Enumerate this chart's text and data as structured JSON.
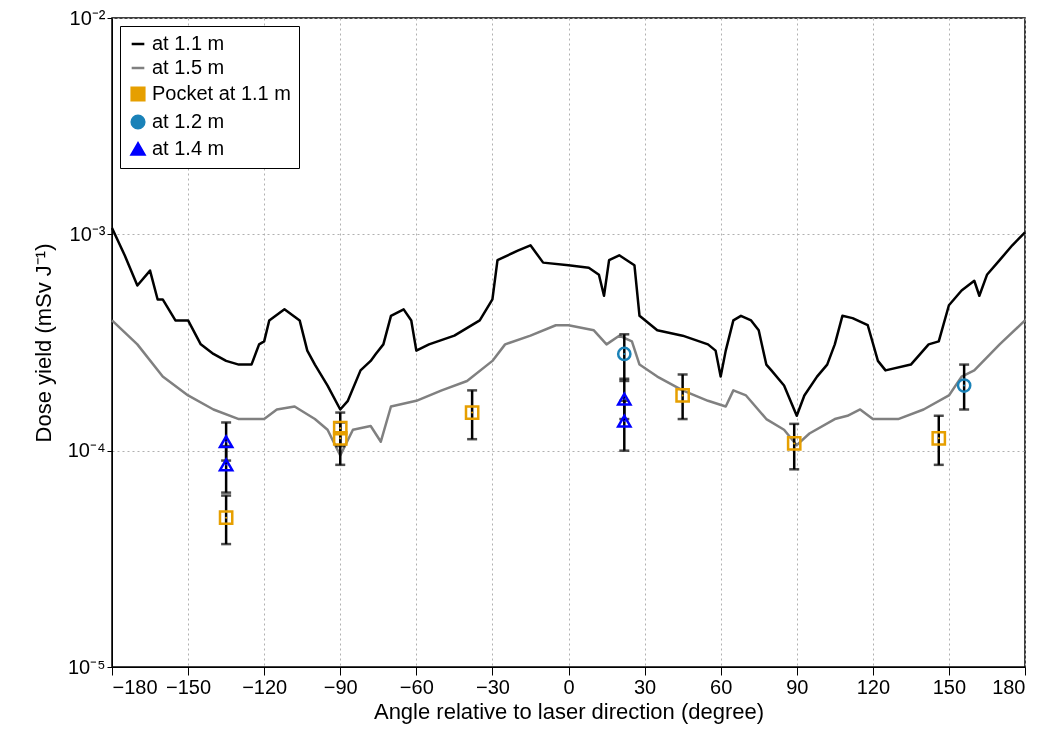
{
  "chart_data": {
    "type": "line",
    "xlabel": "Angle relative to laser direction (degree)",
    "ylabel": "Dose yield (mSv J⁻¹)",
    "xlim": [
      -180,
      180
    ],
    "xticks": [
      -180,
      -150,
      -120,
      -90,
      -60,
      -30,
      0,
      30,
      60,
      90,
      120,
      150,
      180
    ],
    "ylim": [
      1e-05,
      0.01
    ],
    "yticks": [
      {
        "value": 1e-05,
        "label": "10⁻⁵"
      },
      {
        "value": 0.0001,
        "label": "10⁻⁴"
      },
      {
        "value": 0.001,
        "label": "10⁻³"
      },
      {
        "value": 0.01,
        "label": "10⁻²"
      }
    ],
    "log": "y",
    "grid": true,
    "legend": "top left",
    "series": [
      {
        "name": "at 1.1 m",
        "color": "#000000",
        "marker": "none",
        "x": [
          -180,
          -175,
          -170,
          -165,
          -162,
          -160,
          -155,
          -150,
          -145,
          -140,
          -135,
          -130,
          -125,
          -122,
          -120,
          -118,
          -112,
          -106,
          -103,
          -100,
          -95,
          -90,
          -87,
          -82,
          -78,
          -76,
          -73,
          -70,
          -65,
          -62,
          -60,
          -55,
          -45,
          -35,
          -30,
          -28,
          -20,
          -15,
          -10,
          0,
          8,
          12,
          14,
          16,
          20,
          26,
          28,
          35,
          45,
          55,
          58,
          60,
          62,
          65,
          68,
          72,
          75,
          78,
          80,
          85,
          90,
          93,
          98,
          102,
          105,
          108,
          112,
          118,
          122,
          125,
          135,
          142,
          146,
          150,
          155,
          160,
          162,
          165,
          170,
          175,
          180
        ],
        "values": [
          0.00107,
          0.0008,
          0.00058,
          0.00068,
          0.0005,
          0.0005,
          0.0004,
          0.0004,
          0.00031,
          0.00028,
          0.00026,
          0.00025,
          0.00025,
          0.00031,
          0.00032,
          0.0004,
          0.00045,
          0.0004,
          0.00029,
          0.00025,
          0.0002,
          0.000155,
          0.00017,
          0.000235,
          0.00026,
          0.00028,
          0.00031,
          0.00042,
          0.00045,
          0.0004,
          0.00029,
          0.00031,
          0.00034,
          0.0004,
          0.0005,
          0.00076,
          0.00084,
          0.00089,
          0.00074,
          0.00072,
          0.0007,
          0.00065,
          0.00052,
          0.00076,
          0.0008,
          0.00072,
          0.00042,
          0.00036,
          0.00034,
          0.00031,
          0.00029,
          0.00022,
          0.00029,
          0.0004,
          0.00042,
          0.0004,
          0.00036,
          0.00025,
          0.000235,
          0.0002,
          0.000145,
          0.00018,
          0.00022,
          0.00025,
          0.00031,
          0.00042,
          0.00041,
          0.00038,
          0.00026,
          0.000235,
          0.00025,
          0.00031,
          0.00032,
          0.00047,
          0.00055,
          0.00061,
          0.00052,
          0.00065,
          0.00076,
          0.00089,
          0.00102
        ]
      },
      {
        "name": "at 1.5 m",
        "color": "#808080",
        "marker": "none",
        "x": [
          -180,
          -170,
          -160,
          -150,
          -140,
          -130,
          -120,
          -115,
          -108,
          -100,
          -95,
          -90,
          -85,
          -78,
          -74,
          -70,
          -60,
          -50,
          -40,
          -30,
          -25,
          -15,
          -5,
          0,
          10,
          15,
          20,
          25,
          28,
          35,
          45,
          55,
          62,
          65,
          70,
          78,
          85,
          90,
          95,
          105,
          110,
          115,
          120,
          130,
          140,
          150,
          155,
          160,
          170,
          180
        ],
        "values": [
          0.0004,
          0.00031,
          0.00022,
          0.00018,
          0.000155,
          0.00014,
          0.00014,
          0.000155,
          0.00016,
          0.00014,
          0.000125,
          9.5e-05,
          0.000125,
          0.00013,
          0.00011,
          0.00016,
          0.00017,
          0.00019,
          0.00021,
          0.00026,
          0.00031,
          0.00034,
          0.00038,
          0.00038,
          0.00036,
          0.00031,
          0.00034,
          0.00032,
          0.00025,
          0.00022,
          0.00019,
          0.00017,
          0.00016,
          0.00019,
          0.00018,
          0.00014,
          0.000125,
          0.000106,
          0.00012,
          0.00014,
          0.000145,
          0.000155,
          0.00014,
          0.00014,
          0.000155,
          0.00018,
          0.00022,
          0.000235,
          0.00031,
          0.0004
        ]
      },
      {
        "name": "Pocket at 1.1 m",
        "type": "scatter",
        "color": "#e69f00",
        "marker": "square",
        "x": [
          -135,
          -90,
          -90,
          -38,
          45,
          89,
          146
        ],
        "values": [
          4.9e-05,
          0.000127,
          0.000114,
          0.00015,
          0.00018,
          0.000108,
          0.000114
        ],
        "errors": [
          [
            3.7e-05,
            6.2e-05
          ],
          [
            0.000105,
            0.00015
          ],
          [
            8.6e-05,
            0.000135
          ],
          [
            0.000113,
            0.00019
          ],
          [
            0.00014,
            0.000225
          ],
          [
            8.2e-05,
            0.000133
          ],
          [
            8.6e-05,
            0.000145
          ]
        ]
      },
      {
        "name": "at 1.2 m",
        "type": "scatter",
        "color": "#1a82b8",
        "marker": "circle",
        "x": [
          22,
          156
        ],
        "values": [
          0.00028,
          0.0002
        ],
        "errors": [
          [
            0.00021,
            0.000345
          ],
          [
            0.000155,
            0.00025
          ]
        ]
      },
      {
        "name": "at 1.4 m",
        "type": "scatter",
        "color": "#0000ff",
        "marker": "triangle",
        "x": [
          -135,
          -135,
          22,
          22
        ],
        "values": [
          0.00011,
          8.6e-05,
          0.000173,
          0.000137
        ],
        "errors": [
          [
            9e-05,
            0.000135
          ],
          [
            6.4e-05,
            0.000105
          ],
          [
            0.00014,
            0.000215
          ],
          [
            0.0001,
            0.00017
          ]
        ]
      }
    ]
  }
}
